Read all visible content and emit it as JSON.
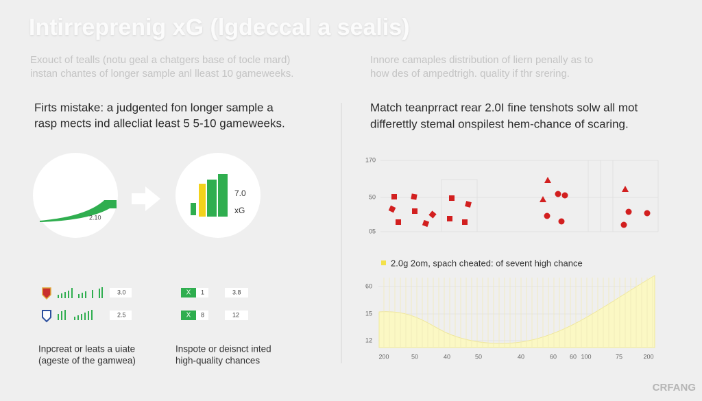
{
  "header": {
    "title": "Intirreprenig xG (lgdeccal a sealis)"
  },
  "left": {
    "subtitle": [
      "Exouct of tealls (notu geal a chatgers base of tocle mard)",
      "instan chantes of longer sample anl lleast 10 gameweeks."
    ],
    "heading": [
      "Firts mistake: a judgented fon longer sample a",
      "rasp mects ind allecliat least 5 5-10 gameweeks."
    ],
    "circle_label": "2.10",
    "circle_value": "7.0",
    "circle_unit": "xG"
  },
  "right": {
    "subtitle": [
      "Innore camaples distribution of liern penally as to",
      "how des of ampedtrigh. quality if thr srering."
    ],
    "heading": [
      "Match teanprract rear 2.0I fine tenshots solw all mot",
      "differettly stemal onspilest hem-chance of scaring."
    ],
    "legend": "2.0g 2om, spach cheated: of sevent high chance",
    "scatter_ticks": [
      "170",
      "50",
      "05"
    ],
    "area_yticks": [
      "60",
      "15",
      "12"
    ],
    "area_xticks": [
      "200",
      "50",
      "40",
      "50",
      "40",
      "60",
      "60",
      "100",
      "75",
      "200"
    ]
  },
  "rows": [
    {
      "left_value": "3.0",
      "mark": "X",
      "count": "1",
      "right_value": "3.8"
    },
    {
      "left_value": "2.5",
      "mark": "X",
      "count": "8",
      "right_value": "12"
    }
  ],
  "captions": [
    [
      "Inpcreat or leats a uiate",
      "(ageste of the gamwea)"
    ],
    [
      "Inspote or deisnct inted",
      "high-quality chances"
    ]
  ],
  "footer": {
    "watermark": "CRFANG"
  }
}
